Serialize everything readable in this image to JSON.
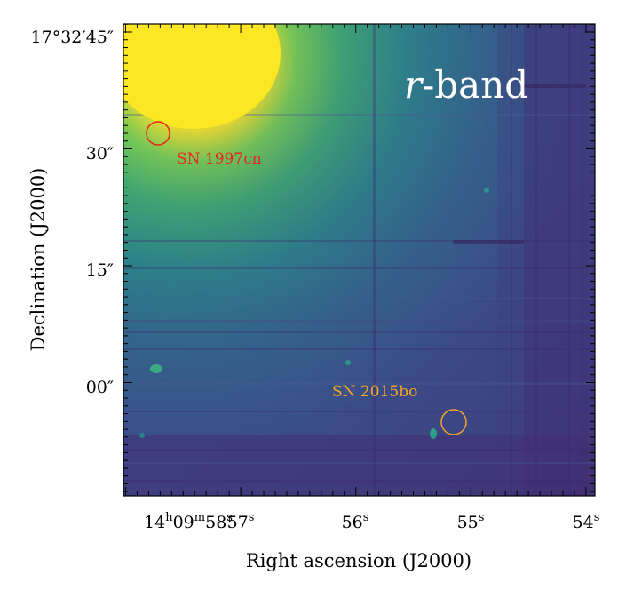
{
  "figure": {
    "band_label": {
      "italic": "r",
      "rest": "-band"
    },
    "x_axis": {
      "title": "Right ascension (J2000)",
      "ticks": [
        {
          "label": "14",
          "sup1": "h",
          "mid": "09",
          "sup2": "m",
          "mid2": "58",
          "sup3": "s"
        },
        {
          "label": "57",
          "sup1": "s"
        },
        {
          "label": "56",
          "sup1": "s"
        },
        {
          "label": "55",
          "sup1": "s"
        },
        {
          "label": "54",
          "sup1": "s"
        }
      ]
    },
    "y_axis": {
      "title": "Declination (J2000)",
      "ticks": [
        "17°32′45″",
        "30″",
        "15″",
        "00″"
      ]
    },
    "sources": [
      {
        "name": "SN 1997cn",
        "color": "#e8251f"
      },
      {
        "name": "SN 2015bo",
        "color": "#f5a623"
      }
    ],
    "colormap": [
      "#440154",
      "#3b528b",
      "#21918c",
      "#5ec962",
      "#fde725"
    ]
  }
}
